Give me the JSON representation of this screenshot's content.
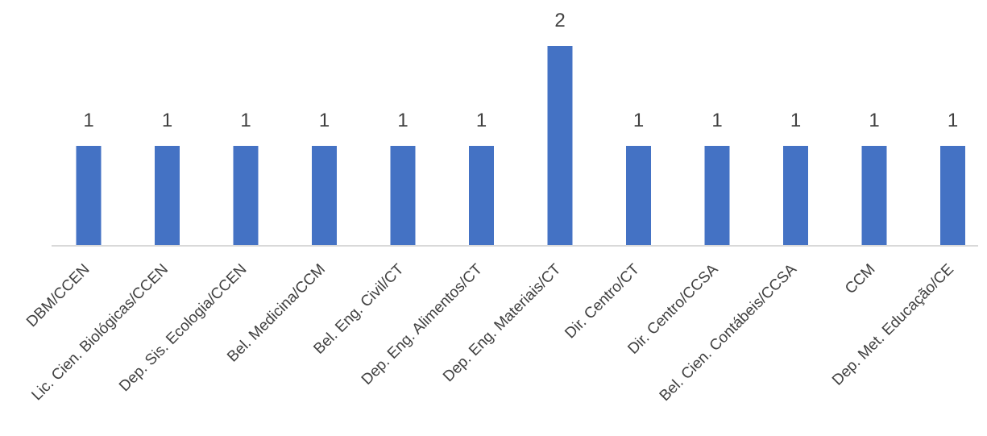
{
  "chart_data": {
    "type": "bar",
    "categories": [
      "DBM/CCEN",
      "Lic. Cien. Biológicas/CCEN",
      "Dep. Sis. Ecologia/CCEN",
      "Bel. Medicina/CCM",
      "Bel. Eng. Civil/CT",
      "Dep. Eng. Alimentos/CT",
      "Dep. Eng. Materiais/CT",
      "Dir. Centro/CT",
      "Dir. Centro/CCSA",
      "Bel. Cien. Contábeis/CCSA",
      "CCM",
      "Dep. Met. Educação/CE"
    ],
    "values": [
      1,
      1,
      1,
      1,
      1,
      1,
      2,
      1,
      1,
      1,
      1,
      1
    ],
    "data_labels": [
      "1",
      "1",
      "1",
      "1",
      "1",
      "1",
      "2",
      "1",
      "1",
      "1",
      "1",
      "1"
    ],
    "title": "",
    "xlabel": "",
    "ylabel": "",
    "ylim": [
      0,
      2
    ],
    "grid": false,
    "legend": "none",
    "colors": {
      "bar": "#4472C4",
      "axis": "#D9D9D9",
      "text": "#404040"
    }
  }
}
